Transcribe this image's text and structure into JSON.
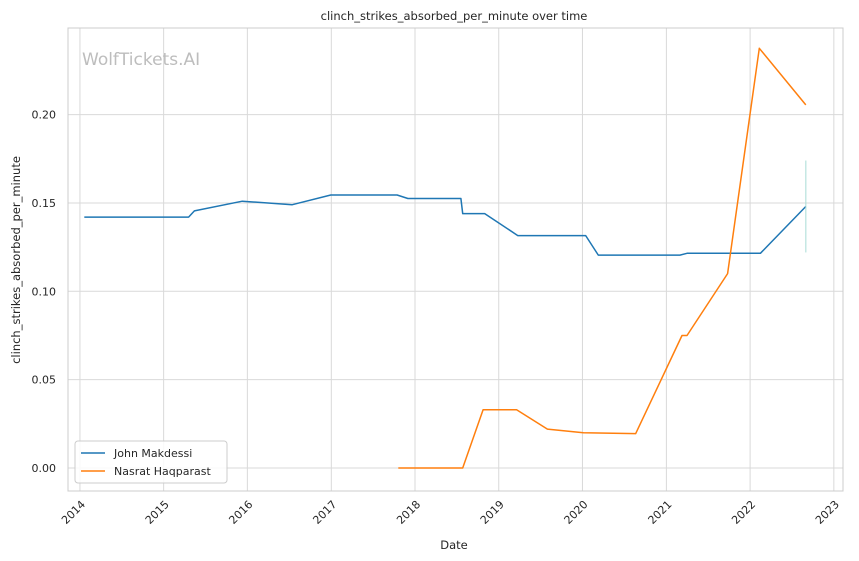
{
  "chart_data": {
    "type": "line",
    "title": "clinch_strikes_absorbed_per_minute over time",
    "xlabel": "Date",
    "ylabel": "clinch_strikes_absorbed_per_minute",
    "watermark": "WolfTickets.AI",
    "x_ticks": [
      "2014",
      "2015",
      "2016",
      "2017",
      "2018",
      "2019",
      "2020",
      "2021",
      "2022",
      "2023"
    ],
    "y_ticks": [
      "0.00",
      "0.05",
      "0.10",
      "0.15",
      "0.20"
    ],
    "xlim": [
      "2013-11-10",
      "2023-02-10"
    ],
    "ylim": [
      -0.013,
      0.249
    ],
    "grid": true,
    "legend_position": "lower-left",
    "series": [
      {
        "name": "John Makdessi",
        "color": "#1f77b4",
        "points": [
          [
            "2014-01-20",
            0.142
          ],
          [
            "2014-12-01",
            0.142
          ],
          [
            "2015-04-20",
            0.142
          ],
          [
            "2015-05-15",
            0.1455
          ],
          [
            "2015-12-10",
            0.151
          ],
          [
            "2016-07-15",
            0.149
          ],
          [
            "2016-12-30",
            0.1545
          ],
          [
            "2017-07-15",
            0.1545
          ],
          [
            "2017-10-15",
            0.1545
          ],
          [
            "2017-12-01",
            0.1525
          ],
          [
            "2018-07-20",
            0.1525
          ],
          [
            "2018-07-28",
            0.144
          ],
          [
            "2018-11-01",
            0.144
          ],
          [
            "2019-03-25",
            0.1315
          ],
          [
            "2019-11-01",
            0.1315
          ],
          [
            "2020-01-15",
            0.1315
          ],
          [
            "2020-03-10",
            0.1205
          ],
          [
            "2021-03-01",
            0.1205
          ],
          [
            "2021-04-01",
            0.1215
          ],
          [
            "2022-02-15",
            0.1215
          ],
          [
            "2022-09-01",
            0.148
          ]
        ]
      },
      {
        "name": "Nasrat Haqparast",
        "color": "#ff7f0e",
        "points": [
          [
            "2017-10-20",
            0.0
          ],
          [
            "2018-07-28",
            0.0
          ],
          [
            "2018-10-25",
            0.033
          ],
          [
            "2019-03-20",
            0.033
          ],
          [
            "2019-08-01",
            0.022
          ],
          [
            "2020-01-05",
            0.02
          ],
          [
            "2020-08-20",
            0.0195
          ],
          [
            "2021-03-10",
            0.075
          ],
          [
            "2021-04-01",
            0.075
          ],
          [
            "2021-09-25",
            0.11
          ],
          [
            "2022-02-10",
            0.2375
          ],
          [
            "2022-09-01",
            0.2055
          ]
        ]
      }
    ],
    "error_bar": {
      "x": "2022-09-01",
      "low": 0.122,
      "high": 0.174,
      "color": "#a8dcd6"
    }
  }
}
